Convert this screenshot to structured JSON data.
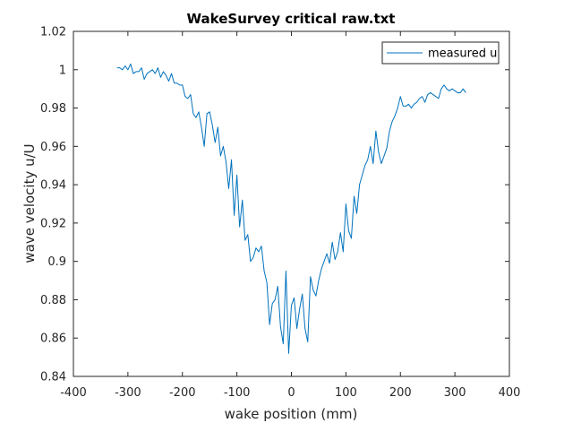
{
  "chart_data": {
    "type": "line",
    "title": "WakeSurvey critical raw.txt",
    "xlabel": "wake position (mm)",
    "ylabel": "wave velocity u/U",
    "xlim": [
      -400,
      400
    ],
    "ylim": [
      0.84,
      1.02
    ],
    "xticks": [
      -400,
      -300,
      -200,
      -100,
      0,
      100,
      200,
      300,
      400
    ],
    "xtick_labels": [
      "-400",
      "-300",
      "-200",
      "-100",
      "0",
      "100",
      "200",
      "300",
      "400"
    ],
    "yticks": [
      0.84,
      0.86,
      0.88,
      0.9,
      0.92,
      0.94,
      0.96,
      0.98,
      1,
      1.02
    ],
    "ytick_labels": [
      "0.84",
      "0.86",
      "0.88",
      "0.9",
      "0.92",
      "0.94",
      "0.96",
      "0.98",
      "1",
      "1.02"
    ],
    "grid": false,
    "legend_position": "top-right",
    "colors": {
      "series": "#0072bd",
      "axes": "#262626",
      "background": "#ffffff"
    },
    "series": [
      {
        "name": "measured u",
        "x": [
          -320,
          -315,
          -310,
          -305,
          -300,
          -295,
          -290,
          -285,
          -280,
          -275,
          -270,
          -265,
          -260,
          -255,
          -250,
          -245,
          -240,
          -235,
          -230,
          -225,
          -220,
          -215,
          -210,
          -205,
          -200,
          -195,
          -190,
          -185,
          -180,
          -175,
          -170,
          -165,
          -160,
          -155,
          -150,
          -145,
          -140,
          -135,
          -130,
          -125,
          -120,
          -115,
          -110,
          -105,
          -100,
          -95,
          -90,
          -85,
          -80,
          -75,
          -70,
          -65,
          -60,
          -55,
          -50,
          -45,
          -40,
          -35,
          -30,
          -25,
          -20,
          -15,
          -10,
          -5,
          0,
          5,
          10,
          15,
          20,
          25,
          30,
          35,
          40,
          45,
          50,
          55,
          60,
          65,
          70,
          75,
          80,
          85,
          90,
          95,
          100,
          105,
          110,
          115,
          120,
          125,
          130,
          135,
          140,
          145,
          150,
          155,
          160,
          165,
          170,
          175,
          180,
          185,
          190,
          195,
          200,
          205,
          210,
          215,
          220,
          225,
          230,
          235,
          240,
          245,
          250,
          255,
          260,
          265,
          270,
          275,
          280,
          285,
          290,
          295,
          300,
          305,
          310,
          315,
          320
        ],
        "y": [
          1.001,
          1.001,
          1.0,
          1.002,
          1.0,
          1.003,
          0.998,
          0.999,
          0.999,
          1.001,
          0.995,
          0.998,
          0.999,
          1.0,
          0.998,
          1.001,
          0.996,
          0.999,
          0.997,
          0.994,
          0.998,
          0.993,
          0.993,
          0.992,
          0.992,
          0.986,
          0.985,
          0.987,
          0.977,
          0.975,
          0.978,
          0.97,
          0.96,
          0.977,
          0.978,
          0.971,
          0.962,
          0.97,
          0.955,
          0.96,
          0.952,
          0.938,
          0.953,
          0.924,
          0.945,
          0.918,
          0.932,
          0.911,
          0.914,
          0.9,
          0.902,
          0.907,
          0.905,
          0.908,
          0.895,
          0.889,
          0.867,
          0.878,
          0.88,
          0.887,
          0.866,
          0.857,
          0.895,
          0.852,
          0.877,
          0.881,
          0.865,
          0.875,
          0.883,
          0.865,
          0.858,
          0.892,
          0.885,
          0.882,
          0.89,
          0.896,
          0.9,
          0.904,
          0.899,
          0.91,
          0.901,
          0.905,
          0.915,
          0.905,
          0.93,
          0.916,
          0.912,
          0.934,
          0.925,
          0.94,
          0.945,
          0.95,
          0.953,
          0.96,
          0.951,
          0.968,
          0.957,
          0.951,
          0.955,
          0.959,
          0.968,
          0.973,
          0.976,
          0.98,
          0.986,
          0.981,
          0.981,
          0.982,
          0.98,
          0.982,
          0.983,
          0.985,
          0.986,
          0.983,
          0.987,
          0.988,
          0.987,
          0.986,
          0.985,
          0.99,
          0.992,
          0.99,
          0.989,
          0.99,
          0.989,
          0.988,
          0.988,
          0.99,
          0.988
        ]
      }
    ]
  }
}
